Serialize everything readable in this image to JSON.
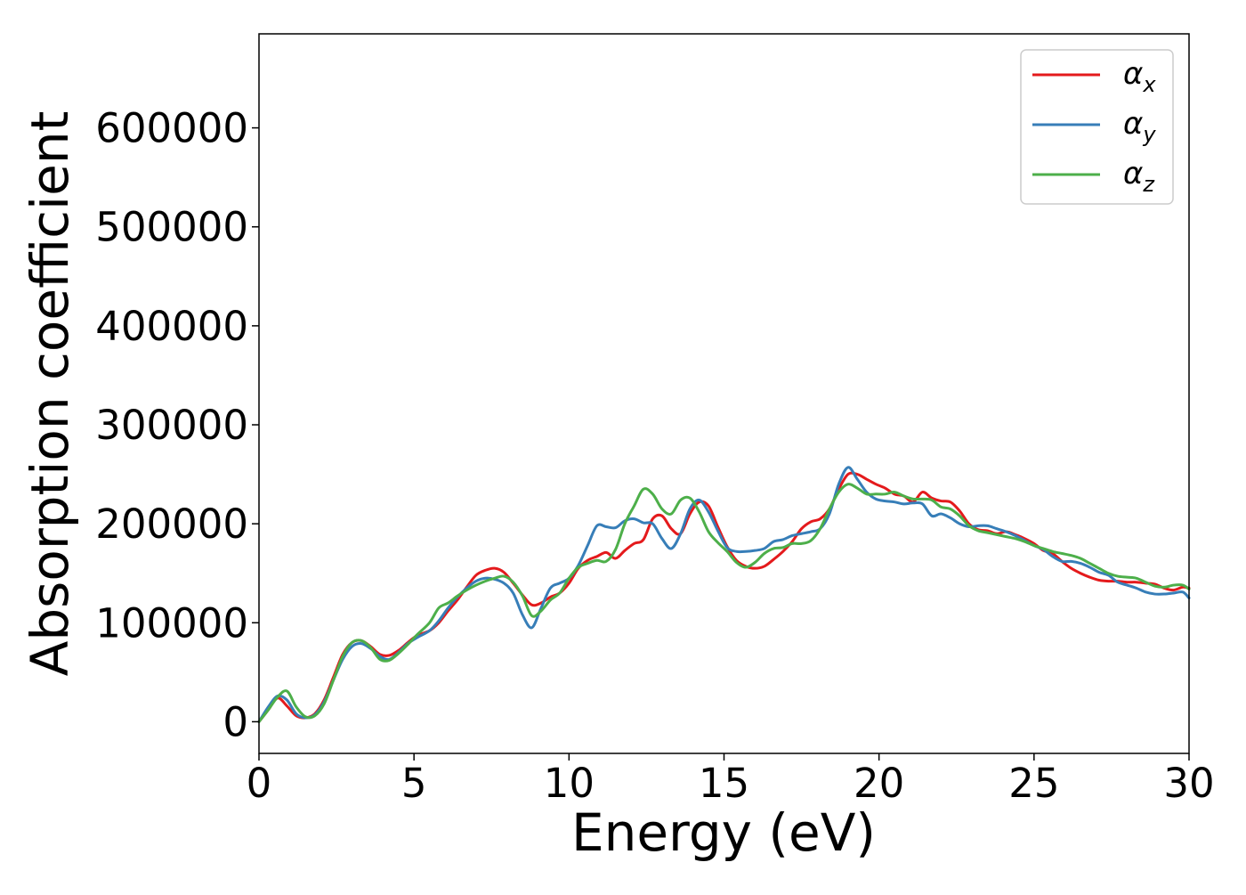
{
  "chart_data": {
    "type": "line",
    "title": "",
    "xlabel": "Energy (eV)",
    "ylabel": "Absorption coefficient",
    "xlim": [
      0,
      30
    ],
    "ylim": [
      -32000,
      695000
    ],
    "xticks": [
      0,
      5,
      10,
      15,
      20,
      25,
      30
    ],
    "yticks": [
      0,
      100000,
      200000,
      300000,
      400000,
      500000,
      600000
    ],
    "grid": false,
    "legend_placement": "top-right",
    "series": [
      {
        "name": "αx",
        "legend_base": "α",
        "legend_sub": "x",
        "color": "#e41a1c",
        "x": [
          0,
          0.3,
          0.6,
          0.9,
          1.2,
          1.5,
          1.8,
          2.1,
          2.4,
          2.7,
          3.0,
          3.3,
          3.6,
          3.9,
          4.2,
          4.5,
          4.8,
          5.1,
          5.5,
          5.8,
          6.1,
          6.4,
          6.7,
          7.0,
          7.3,
          7.6,
          7.9,
          8.2,
          8.5,
          8.8,
          9.1,
          9.4,
          9.7,
          10.0,
          10.3,
          10.6,
          10.9,
          11.2,
          11.5,
          11.8,
          12.1,
          12.4,
          12.7,
          13.0,
          13.3,
          13.6,
          13.9,
          14.2,
          14.5,
          14.8,
          15.1,
          15.4,
          15.7,
          16.0,
          16.3,
          16.6,
          16.9,
          17.2,
          17.5,
          17.8,
          18.1,
          18.4,
          18.7,
          19.0,
          19.3,
          19.6,
          19.9,
          20.2,
          20.5,
          20.8,
          21.1,
          21.4,
          21.7,
          22.0,
          22.3,
          22.6,
          22.9,
          23.2,
          23.5,
          23.8,
          24.1,
          24.4,
          24.7,
          25.0,
          25.3,
          25.6,
          25.9,
          26.2,
          26.5,
          26.8,
          27.1,
          27.4,
          27.7,
          28.0,
          28.3,
          28.6,
          28.9,
          29.2,
          29.5,
          29.8,
          30.0
        ],
        "values": [
          0,
          12000,
          24000,
          16000,
          6000,
          4000,
          8000,
          22000,
          45000,
          68000,
          80000,
          82000,
          76000,
          68000,
          67000,
          72000,
          80000,
          87000,
          92000,
          100000,
          112000,
          123000,
          136000,
          148000,
          153000,
          155000,
          151000,
          140000,
          128000,
          118000,
          120000,
          126000,
          130000,
          140000,
          155000,
          163000,
          167000,
          171000,
          165000,
          173000,
          180000,
          184000,
          205000,
          208000,
          195000,
          190000,
          210000,
          222000,
          218000,
          197000,
          177000,
          163000,
          157000,
          155000,
          157000,
          164000,
          172000,
          182000,
          195000,
          202000,
          205000,
          215000,
          235000,
          250000,
          250000,
          245000,
          240000,
          236000,
          230000,
          228000,
          222000,
          232000,
          226000,
          223000,
          222000,
          213000,
          200000,
          194000,
          193000,
          190000,
          192000,
          189000,
          185000,
          180000,
          173000,
          170000,
          162000,
          155000,
          150000,
          146000,
          143000,
          142000,
          142000,
          141000,
          141000,
          140000,
          139000,
          135000,
          133000,
          136000,
          135000
        ]
      },
      {
        "name": "αy",
        "legend_base": "α",
        "legend_sub": "y",
        "color": "#377eb8",
        "x": [
          0,
          0.3,
          0.6,
          0.9,
          1.2,
          1.5,
          1.8,
          2.1,
          2.4,
          2.7,
          3.0,
          3.3,
          3.6,
          3.9,
          4.2,
          4.5,
          4.8,
          5.1,
          5.5,
          5.8,
          6.1,
          6.4,
          6.7,
          7.0,
          7.3,
          7.6,
          7.9,
          8.2,
          8.5,
          8.8,
          9.1,
          9.4,
          9.7,
          10.0,
          10.3,
          10.6,
          10.9,
          11.2,
          11.5,
          11.8,
          12.1,
          12.4,
          12.7,
          13.0,
          13.3,
          13.6,
          13.9,
          14.2,
          14.5,
          14.8,
          15.1,
          15.4,
          15.7,
          16.0,
          16.3,
          16.6,
          16.9,
          17.2,
          17.5,
          17.8,
          18.1,
          18.4,
          18.7,
          19.0,
          19.3,
          19.6,
          19.9,
          20.2,
          20.5,
          20.8,
          21.1,
          21.4,
          21.7,
          22.0,
          22.3,
          22.6,
          22.9,
          23.2,
          23.5,
          23.8,
          24.1,
          24.4,
          24.7,
          25.0,
          25.3,
          25.6,
          25.9,
          26.2,
          26.5,
          26.8,
          27.1,
          27.4,
          27.7,
          28.0,
          28.3,
          28.6,
          28.9,
          29.2,
          29.5,
          29.8,
          30.0
        ],
        "values": [
          0,
          15000,
          26000,
          22000,
          8000,
          4000,
          7000,
          20000,
          42000,
          63000,
          76000,
          79000,
          74000,
          66000,
          63000,
          70000,
          79000,
          85000,
          92000,
          102000,
          115000,
          126000,
          135000,
          142000,
          145000,
          144000,
          140000,
          130000,
          108000,
          95000,
          115000,
          135000,
          140000,
          145000,
          158000,
          178000,
          198000,
          197000,
          196000,
          203000,
          205000,
          201000,
          200000,
          185000,
          175000,
          190000,
          215000,
          224000,
          212000,
          193000,
          176000,
          172000,
          172000,
          173000,
          175000,
          182000,
          184000,
          188000,
          190000,
          192000,
          195000,
          210000,
          240000,
          257000,
          245000,
          232000,
          225000,
          223000,
          222000,
          220000,
          221000,
          220000,
          208000,
          210000,
          206000,
          200000,
          197000,
          198000,
          198000,
          195000,
          192000,
          188000,
          183000,
          178000,
          174000,
          167000,
          162000,
          162000,
          160000,
          156000,
          151000,
          148000,
          141000,
          138000,
          135000,
          131000,
          129000,
          129000,
          130000,
          131000,
          125000
        ]
      },
      {
        "name": "αz",
        "legend_base": "α",
        "legend_sub": "z",
        "color": "#4daf4a",
        "x": [
          0,
          0.3,
          0.6,
          0.9,
          1.2,
          1.5,
          1.8,
          2.1,
          2.4,
          2.7,
          3.0,
          3.3,
          3.6,
          3.9,
          4.2,
          4.5,
          4.8,
          5.1,
          5.5,
          5.8,
          6.1,
          6.4,
          6.7,
          7.0,
          7.3,
          7.6,
          7.9,
          8.2,
          8.5,
          8.8,
          9.1,
          9.4,
          9.7,
          10.0,
          10.3,
          10.6,
          10.9,
          11.2,
          11.5,
          11.8,
          12.1,
          12.4,
          12.7,
          13.0,
          13.3,
          13.6,
          13.9,
          14.2,
          14.5,
          14.8,
          15.1,
          15.4,
          15.7,
          16.0,
          16.3,
          16.6,
          16.9,
          17.2,
          17.5,
          17.8,
          18.1,
          18.4,
          18.7,
          19.0,
          19.3,
          19.6,
          19.9,
          20.2,
          20.5,
          20.8,
          21.1,
          21.4,
          21.7,
          22.0,
          22.3,
          22.6,
          22.9,
          23.2,
          23.5,
          23.8,
          24.1,
          24.4,
          24.7,
          25.0,
          25.3,
          25.6,
          25.9,
          26.2,
          26.5,
          26.8,
          27.1,
          27.4,
          27.7,
          28.0,
          28.3,
          28.6,
          28.9,
          29.2,
          29.5,
          29.8,
          30.0
        ],
        "values": [
          0,
          12000,
          25000,
          31000,
          15000,
          5000,
          6000,
          18000,
          42000,
          66000,
          80000,
          82000,
          75000,
          63000,
          62000,
          69000,
          78000,
          88000,
          100000,
          115000,
          120000,
          127000,
          133000,
          138000,
          142000,
          145000,
          147000,
          141000,
          127000,
          107000,
          112000,
          123000,
          130000,
          145000,
          156000,
          160000,
          163000,
          162000,
          174000,
          200000,
          218000,
          235000,
          230000,
          215000,
          210000,
          224000,
          226000,
          212000,
          192000,
          181000,
          172000,
          161000,
          156000,
          161000,
          170000,
          175000,
          176000,
          180000,
          180000,
          183000,
          195000,
          215000,
          232000,
          240000,
          236000,
          230000,
          230000,
          230000,
          232000,
          228000,
          225000,
          225000,
          224000,
          217000,
          215000,
          208000,
          198000,
          193000,
          191000,
          189000,
          187000,
          185000,
          182000,
          178000,
          175000,
          172000,
          170000,
          168000,
          165000,
          160000,
          155000,
          150000,
          147000,
          146000,
          145000,
          141000,
          137000,
          136000,
          138000,
          138000,
          134000
        ]
      }
    ]
  }
}
